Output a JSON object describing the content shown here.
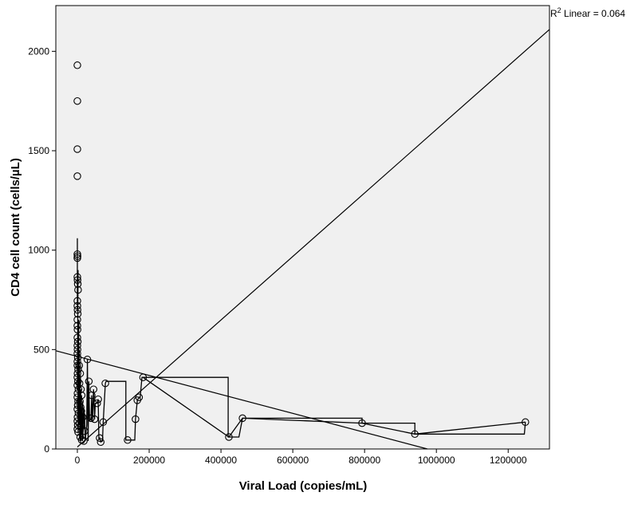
{
  "chart_data": {
    "type": "scatter",
    "xlabel": "Viral Load (copies/mL)",
    "ylabel": "CD4 cell count (cells/µL)",
    "xlim": [
      -60000,
      1315000
    ],
    "ylim": [
      0,
      2230
    ],
    "x_ticks": [
      "0",
      "200000",
      "400000",
      "600000",
      "800000",
      "1000000",
      "1200000"
    ],
    "x_tick_values": [
      0,
      200000,
      400000,
      600000,
      800000,
      1000000,
      1200000
    ],
    "y_ticks": [
      "0",
      "500",
      "1000",
      "1500",
      "2000"
    ],
    "y_tick_values": [
      0,
      500,
      1000,
      1500,
      2000
    ],
    "grid": false,
    "background_color": "#f0f0f0",
    "r2_label": {
      "prefix": "R",
      "sup": "2",
      "suffix": " Linear = 0.064"
    },
    "points": [
      [
        0,
        1930
      ],
      [
        0,
        1750
      ],
      [
        0,
        1508
      ],
      [
        0,
        1372
      ],
      [
        0,
        980
      ],
      [
        500,
        970
      ],
      [
        0,
        960
      ],
      [
        0,
        865
      ],
      [
        500,
        850
      ],
      [
        1000,
        830
      ],
      [
        2000,
        800
      ],
      [
        0,
        745
      ],
      [
        0,
        720
      ],
      [
        500,
        700
      ],
      [
        1000,
        680
      ],
      [
        0,
        650
      ],
      [
        0,
        620
      ],
      [
        500,
        600
      ],
      [
        0,
        560
      ],
      [
        1000,
        540
      ],
      [
        0,
        520
      ],
      [
        500,
        500
      ],
      [
        0,
        480
      ],
      [
        1000,
        460
      ],
      [
        0,
        440
      ],
      [
        0,
        420
      ],
      [
        2000,
        400
      ],
      [
        500,
        380
      ],
      [
        0,
        360
      ],
      [
        1500,
        340
      ],
      [
        0,
        320
      ],
      [
        3000,
        300
      ],
      [
        500,
        280
      ],
      [
        0,
        260
      ],
      [
        2000,
        240
      ],
      [
        1000,
        220
      ],
      [
        0,
        200
      ],
      [
        3000,
        180
      ],
      [
        500,
        160
      ],
      [
        0,
        140
      ],
      [
        1000,
        120
      ],
      [
        0,
        100
      ],
      [
        2000,
        85
      ],
      [
        5000,
        420
      ],
      [
        8000,
        380
      ],
      [
        6000,
        330
      ],
      [
        10000,
        300
      ],
      [
        12000,
        270
      ],
      [
        7000,
        240
      ],
      [
        9000,
        210
      ],
      [
        11000,
        190
      ],
      [
        15000,
        160
      ],
      [
        6000,
        130
      ],
      [
        10000,
        110
      ],
      [
        20000,
        90
      ],
      [
        8000,
        60
      ],
      [
        12000,
        45
      ],
      [
        18000,
        40
      ],
      [
        28000,
        450
      ],
      [
        32000,
        340
      ],
      [
        40000,
        270
      ],
      [
        45000,
        300
      ],
      [
        38000,
        155
      ],
      [
        48000,
        150
      ],
      [
        55000,
        230
      ],
      [
        58000,
        250
      ],
      [
        62000,
        55
      ],
      [
        65000,
        35
      ],
      [
        78000,
        330
      ],
      [
        72000,
        135
      ],
      [
        140000,
        45
      ],
      [
        162000,
        150
      ],
      [
        167000,
        245
      ],
      [
        172000,
        260
      ],
      [
        183000,
        360
      ],
      [
        422000,
        60
      ],
      [
        460000,
        155
      ],
      [
        793000,
        130
      ],
      [
        940000,
        75
      ],
      [
        1248000,
        135
      ]
    ],
    "path": [
      [
        0,
        1060
      ],
      [
        0,
        700
      ],
      [
        2000,
        900
      ],
      [
        0,
        300
      ],
      [
        4000,
        650
      ],
      [
        1000,
        150
      ],
      [
        5000,
        500
      ],
      [
        2000,
        80
      ],
      [
        6000,
        420
      ],
      [
        3000,
        200
      ],
      [
        8000,
        360
      ],
      [
        5000,
        120
      ],
      [
        10000,
        300
      ],
      [
        6000,
        50
      ],
      [
        12000,
        270
      ],
      [
        8000,
        40
      ],
      [
        15000,
        240
      ],
      [
        10000,
        45
      ],
      [
        18000,
        210
      ],
      [
        14000,
        40
      ],
      [
        20000,
        180
      ],
      [
        22000,
        40
      ],
      [
        26000,
        120
      ],
      [
        28000,
        450
      ],
      [
        30000,
        40
      ],
      [
        32000,
        340
      ],
      [
        34000,
        140
      ],
      [
        38000,
        155
      ],
      [
        40000,
        270
      ],
      [
        42000,
        140
      ],
      [
        45000,
        300
      ],
      [
        48000,
        150
      ],
      [
        50000,
        230
      ],
      [
        55000,
        230
      ],
      [
        58000,
        250
      ],
      [
        60000,
        50
      ],
      [
        62000,
        55
      ],
      [
        65000,
        35
      ],
      [
        70000,
        40
      ],
      [
        72000,
        135
      ],
      [
        78000,
        330
      ],
      [
        80000,
        340
      ],
      [
        135000,
        340
      ],
      [
        135000,
        45
      ],
      [
        140000,
        45
      ],
      [
        160000,
        45
      ],
      [
        162000,
        150
      ],
      [
        167000,
        245
      ],
      [
        172000,
        260
      ],
      [
        175000,
        260
      ],
      [
        180000,
        360
      ],
      [
        183000,
        360
      ],
      [
        420000,
        360
      ],
      [
        420000,
        60
      ],
      [
        422000,
        60
      ],
      [
        450000,
        60
      ],
      [
        460000,
        155
      ],
      [
        793000,
        155
      ],
      [
        793000,
        130
      ],
      [
        940000,
        130
      ],
      [
        940000,
        75
      ],
      [
        1245000,
        75
      ],
      [
        1248000,
        135
      ]
    ],
    "connector": [
      [
        183000,
        360
      ],
      [
        422000,
        60
      ],
      [
        460000,
        155
      ],
      [
        793000,
        130
      ],
      [
        940000,
        75
      ],
      [
        1248000,
        135
      ]
    ],
    "fit_lines": [
      {
        "from": [
          -60000,
          494
        ],
        "to": [
          975000,
          0
        ]
      },
      {
        "from": [
          0,
          10
        ],
        "to": [
          1315000,
          2110
        ]
      }
    ]
  }
}
